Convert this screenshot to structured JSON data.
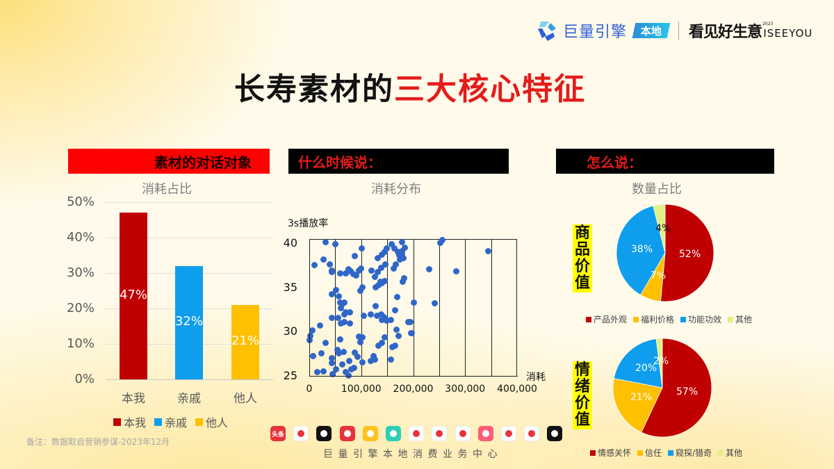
{
  "header": {
    "brand_name": "巨量引擎",
    "brand_tag": "本地",
    "slogan": "看见好生意",
    "slogan_year": "2023",
    "slogan_english": "ISEEYOU"
  },
  "title": {
    "part1": "长寿素材的",
    "part2": "三大核心特征"
  },
  "sections": {
    "s1": {
      "header": "素材的对话对象",
      "subtitle": "消耗占比"
    },
    "s2": {
      "header": "什么时候说：",
      "subtitle": "消耗分布"
    },
    "s3": {
      "header": "怎么说：",
      "subtitle": "数量占比"
    }
  },
  "colors": {
    "red": "#c00000",
    "blue": "#0f9ded",
    "yellow": "#ffc000",
    "lime": "#e2ef85",
    "scatter": "#2f66c8",
    "title_red": "#e51b1b"
  },
  "chart_data": [
    {
      "type": "bar",
      "title": "消耗占比",
      "categories": [
        "本我",
        "亲戚",
        "他人"
      ],
      "values": [
        47,
        32,
        21
      ],
      "value_labels": [
        "47%",
        "32%",
        "21%"
      ],
      "colors": [
        "#c00000",
        "#0f9ded",
        "#ffc000"
      ],
      "yticks": [
        "50%",
        "40%",
        "30%",
        "20%",
        "10%",
        "0%"
      ],
      "ylim": [
        0,
        50
      ],
      "xlabel": "",
      "ylabel": "",
      "legend": [
        "本我",
        "亲戚",
        "他人"
      ],
      "legend_position": "bottom",
      "grid": true
    },
    {
      "type": "scatter",
      "title": "消耗分布",
      "xlabel": "消耗",
      "ylabel": "3s播放率",
      "xlim": [
        0,
        400000
      ],
      "ylim": [
        25,
        40
      ],
      "xticks": [
        "0",
        "100,000",
        "200,000",
        "300,000",
        "400,000"
      ],
      "yticks": [
        "40",
        "35",
        "30",
        "25"
      ],
      "vertical_grid_interval": 50000,
      "points": [
        [
          32000,
          40.2
        ],
        [
          50000,
          40.0
        ],
        [
          101000,
          39.5
        ],
        [
          88000,
          38.6
        ],
        [
          10000,
          37.6
        ],
        [
          27000,
          38.2
        ],
        [
          40000,
          37.7
        ],
        [
          43000,
          37.0
        ],
        [
          44000,
          36.8
        ],
        [
          60000,
          36.7
        ],
        [
          70000,
          36.7
        ],
        [
          75000,
          37.1
        ],
        [
          80000,
          36.9
        ],
        [
          85000,
          36.6
        ],
        [
          90000,
          36.4
        ],
        [
          96000,
          37.0
        ],
        [
          100000,
          37.2
        ],
        [
          52000,
          34.8
        ],
        [
          57000,
          34.1
        ],
        [
          44000,
          34.3
        ],
        [
          68000,
          33.4
        ],
        [
          64000,
          33.2
        ],
        [
          60000,
          33.4
        ],
        [
          61000,
          32.7
        ],
        [
          70000,
          32.3
        ],
        [
          78000,
          32.3
        ],
        [
          67000,
          32.0
        ],
        [
          56000,
          31.6
        ],
        [
          44000,
          31.6
        ],
        [
          68000,
          31.2
        ],
        [
          61000,
          31.0
        ],
        [
          78000,
          31.0
        ],
        [
          102000,
          35.1
        ],
        [
          98000,
          34.7
        ],
        [
          6000,
          30.2
        ],
        [
          2000,
          29.6
        ],
        [
          1000,
          29.1
        ],
        [
          21000,
          30.8
        ],
        [
          31000,
          28.8
        ],
        [
          60000,
          29.2
        ],
        [
          96000,
          29.5
        ],
        [
          103000,
          29.4
        ],
        [
          98000,
          28.9
        ],
        [
          8000,
          27.3
        ],
        [
          23000,
          27.6
        ],
        [
          44000,
          27.1
        ],
        [
          43000,
          26.5
        ],
        [
          54000,
          28.0
        ],
        [
          57000,
          27.6
        ],
        [
          66000,
          27.8
        ],
        [
          88000,
          27.7
        ],
        [
          93000,
          27.2
        ],
        [
          102000,
          26.6
        ],
        [
          118000,
          26.8
        ],
        [
          124000,
          27.3
        ],
        [
          126000,
          26.9
        ],
        [
          15000,
          25.5
        ],
        [
          28000,
          25.6
        ],
        [
          45000,
          25.3
        ],
        [
          52000,
          25.8
        ],
        [
          63000,
          26.4
        ],
        [
          70000,
          25.5
        ],
        [
          75000,
          25.1
        ],
        [
          81000,
          25.8
        ],
        [
          86000,
          26.0
        ],
        [
          77000,
          26.8
        ],
        [
          120000,
          37.0
        ],
        [
          127000,
          36.3
        ],
        [
          132000,
          36.8
        ],
        [
          137000,
          35.7
        ],
        [
          128000,
          35.1
        ],
        [
          133000,
          35.3
        ],
        [
          140000,
          35.6
        ],
        [
          145000,
          35.8
        ],
        [
          138000,
          37.3
        ],
        [
          146000,
          37.7
        ],
        [
          149000,
          39.5
        ],
        [
          158000,
          40.0
        ],
        [
          164000,
          39.5
        ],
        [
          170000,
          39.1
        ],
        [
          173000,
          38.7
        ],
        [
          175000,
          38.2
        ],
        [
          145000,
          39.1
        ],
        [
          132000,
          38.4
        ],
        [
          140000,
          38.8
        ],
        [
          179000,
          40.2
        ],
        [
          178000,
          38.9
        ],
        [
          182000,
          36.1
        ],
        [
          180000,
          35.7
        ],
        [
          131000,
          31.9
        ],
        [
          139000,
          32.0
        ],
        [
          140000,
          31.4
        ],
        [
          144000,
          31.7
        ],
        [
          149000,
          31.3
        ],
        [
          157000,
          31.4
        ],
        [
          165000,
          32.5
        ],
        [
          128000,
          33.0
        ],
        [
          105000,
          31.9
        ],
        [
          118000,
          32.0
        ],
        [
          133000,
          28.5
        ],
        [
          140000,
          28.8
        ],
        [
          145000,
          29.4
        ],
        [
          157000,
          26.9
        ],
        [
          168000,
          30.3
        ],
        [
          172000,
          29.6
        ],
        [
          160000,
          28.3
        ],
        [
          165000,
          28.5
        ],
        [
          169000,
          34.0
        ],
        [
          190000,
          31.2
        ],
        [
          196000,
          29.9
        ],
        [
          201000,
          33.4
        ],
        [
          178000,
          39.2
        ],
        [
          181000,
          38.4
        ],
        [
          184000,
          39.6
        ],
        [
          163000,
          37.2
        ],
        [
          167000,
          37.7
        ],
        [
          252000,
          40.1
        ],
        [
          256000,
          40.4
        ],
        [
          231000,
          37.1
        ],
        [
          283000,
          36.9
        ],
        [
          344000,
          39.2
        ],
        [
          241000,
          33.3
        ],
        [
          194000,
          31.2
        ],
        [
          197000,
          29.9
        ]
      ]
    },
    {
      "type": "pie",
      "title": "商品价值",
      "categories": [
        "产品外观",
        "福利价格",
        "功能功效",
        "其他"
      ],
      "values": [
        52,
        7,
        38,
        4
      ],
      "value_labels": [
        "52%",
        "7%",
        "38%",
        "4%"
      ],
      "colors": [
        "#c00000",
        "#ffc000",
        "#0f9ded",
        "#e2ef85"
      ],
      "legend_position": "bottom"
    },
    {
      "type": "pie",
      "title": "情绪价值",
      "categories": [
        "情感关怀",
        "信任",
        "窥探/猎奇",
        "其他"
      ],
      "values": [
        57,
        21,
        20,
        2
      ],
      "value_labels": [
        "57%",
        "21%",
        "20%",
        "2%"
      ],
      "colors": [
        "#c00000",
        "#ffc000",
        "#0f9ded",
        "#e2ef85"
      ],
      "legend_position": "bottom"
    }
  ],
  "pie_side_labels": [
    "商品价值",
    "情绪价值"
  ],
  "footer": {
    "note": "备注：数据取自营销参谋-2023年12月",
    "org": "巨量引擎本地消费业务中心",
    "apps": [
      {
        "icon": "toutiao-icon",
        "label": "头条",
        "bg": "#e8333c"
      },
      {
        "icon": "xigua-icon",
        "label": "",
        "bg": "#ffffff"
      },
      {
        "icon": "douyin-icon",
        "label": "",
        "bg": "#111111"
      },
      {
        "icon": "douyin-huoshan-icon",
        "label": "",
        "bg": "#e8333c"
      },
      {
        "icon": "dongchedi-icon",
        "label": "",
        "bg": "#ffc21f"
      },
      {
        "icon": "pipixia-icon",
        "label": "",
        "bg": "#2ccfb5"
      },
      {
        "icon": "qingyan-icon",
        "label": "",
        "bg": "#ffffff"
      },
      {
        "icon": "fanqie-novel-icon",
        "label": "",
        "bg": "#ffffff"
      },
      {
        "icon": "fanqie-free-icon",
        "label": "",
        "bg": "#ffffff"
      },
      {
        "icon": "xingtu-icon",
        "label": "",
        "bg": "#ff5c7a"
      },
      {
        "icon": "lark-icon",
        "label": "",
        "bg": "#ffffff"
      },
      {
        "icon": "xingfuli-icon",
        "label": "",
        "bg": "#ffffff"
      },
      {
        "icon": "capcut-icon",
        "label": "",
        "bg": "#111111"
      }
    ]
  }
}
